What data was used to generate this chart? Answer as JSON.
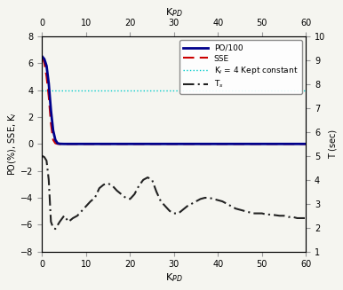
{
  "kpd_values": [
    0,
    0.5,
    1,
    1.5,
    2,
    2.5,
    3,
    3.5,
    4,
    5,
    6,
    7,
    8,
    9,
    10,
    11,
    12,
    13,
    14,
    15,
    16,
    17,
    18,
    19,
    20,
    21,
    22,
    23,
    24,
    25,
    26,
    27,
    28,
    29,
    30,
    31,
    32,
    33,
    34,
    35,
    36,
    37,
    38,
    39,
    40,
    41,
    42,
    43,
    44,
    45,
    46,
    47,
    48,
    49,
    50,
    51,
    52,
    53,
    54,
    55,
    56,
    57,
    58,
    59,
    60
  ],
  "po100": [
    6.5,
    6.3,
    5.8,
    4.5,
    2.5,
    1.0,
    0.3,
    0.05,
    0.01,
    0.0,
    0.0,
    0.0,
    0.0,
    0.0,
    0.0,
    0.0,
    0.0,
    0.0,
    0.0,
    0.0,
    0.0,
    0.0,
    0.0,
    0.0,
    0.0,
    0.0,
    0.0,
    0.0,
    0.0,
    0.0,
    0.0,
    0.0,
    0.0,
    0.0,
    0.0,
    0.0,
    0.0,
    0.0,
    0.0,
    0.0,
    0.0,
    0.0,
    0.0,
    0.0,
    0.0,
    0.0,
    0.0,
    0.0,
    0.0,
    0.0,
    0.0,
    0.0,
    0.0,
    0.0,
    0.0,
    0.0,
    0.0,
    0.0,
    0.0,
    0.0,
    0.0,
    0.0,
    0.0,
    0.0,
    0.0
  ],
  "sse": [
    6.5,
    6.0,
    5.0,
    3.5,
    1.5,
    0.3,
    0.05,
    0.0,
    0.0,
    0.0,
    0.0,
    0.0,
    0.0,
    0.0,
    0.0,
    0.0,
    0.0,
    0.0,
    0.0,
    0.0,
    0.0,
    0.0,
    0.0,
    0.0,
    0.0,
    0.0,
    0.0,
    0.0,
    0.0,
    0.0,
    0.0,
    0.0,
    0.0,
    0.0,
    0.0,
    0.0,
    0.0,
    0.0,
    0.0,
    0.0,
    0.0,
    0.0,
    0.0,
    0.0,
    0.0,
    0.0,
    0.0,
    0.0,
    0.0,
    0.0,
    0.0,
    0.0,
    0.0,
    0.0,
    0.0,
    0.0,
    0.0,
    0.0,
    0.0,
    0.0,
    0.0,
    0.0,
    0.0,
    0.0,
    0.0
  ],
  "ki_const": 4.0,
  "ts_right": [
    5.0,
    4.95,
    4.8,
    4.0,
    2.25,
    2.0,
    1.95,
    2.1,
    2.25,
    2.5,
    2.25,
    2.4,
    2.5,
    2.7,
    2.9,
    3.1,
    3.25,
    3.65,
    3.8,
    3.85,
    3.75,
    3.55,
    3.4,
    3.25,
    3.2,
    3.4,
    3.75,
    4.0,
    4.1,
    4.0,
    3.5,
    3.1,
    2.9,
    2.7,
    2.6,
    2.6,
    2.75,
    2.9,
    3.0,
    3.1,
    3.2,
    3.25,
    3.25,
    3.2,
    3.15,
    3.1,
    3.0,
    2.9,
    2.8,
    2.75,
    2.7,
    2.65,
    2.6,
    2.6,
    2.6,
    2.55,
    2.55,
    2.525,
    2.5,
    2.5,
    2.45,
    2.45,
    2.4,
    2.4,
    2.4
  ],
  "xlim": [
    0,
    60
  ],
  "ylim_left": [
    -8,
    8
  ],
  "ylim_right": [
    1,
    10
  ],
  "xlabel_bottom": "K$_{PD}$",
  "xlabel_top": "K$_{PD}$",
  "ylabel_left": "PO(%), SSE, K$_I$",
  "ylabel_right": "T (sec)",
  "legend_labels": [
    "PO/100",
    "SSE",
    "K$_I$ = 4 Kept constant",
    "T$_s$"
  ],
  "color_po": "#00008B",
  "color_sse": "#CC0000",
  "color_ki": "#00CCCC",
  "color_ts": "#222222",
  "bg_color": "#F5F5F0"
}
